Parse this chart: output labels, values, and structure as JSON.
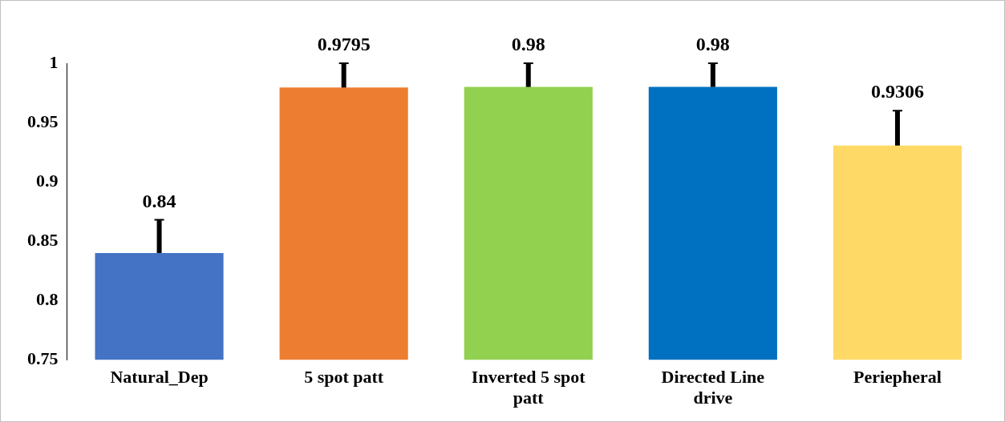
{
  "chart_data": {
    "type": "bar",
    "categories": [
      "Natural_Dep",
      "5 spot patt",
      "Inverted 5 spot patt",
      "Directed Line drive",
      "Periepheral"
    ],
    "values": [
      0.84,
      0.9795,
      0.98,
      0.98,
      0.9306
    ],
    "colors": [
      "#4472c4",
      "#ed7d31",
      "#92d050",
      "#0070c0",
      "#ffd966"
    ],
    "errors": [
      [
        0.84,
        0.868
      ],
      [
        0.9795,
        1.0
      ],
      [
        0.98,
        1.0
      ],
      [
        0.98,
        1.0
      ],
      [
        0.9306,
        0.96
      ]
    ],
    "ylim": [
      0.75,
      1
    ],
    "yticks": [
      0.75,
      0.8,
      0.85,
      0.9,
      0.95,
      1
    ],
    "grid": false,
    "data_labels": true
  }
}
